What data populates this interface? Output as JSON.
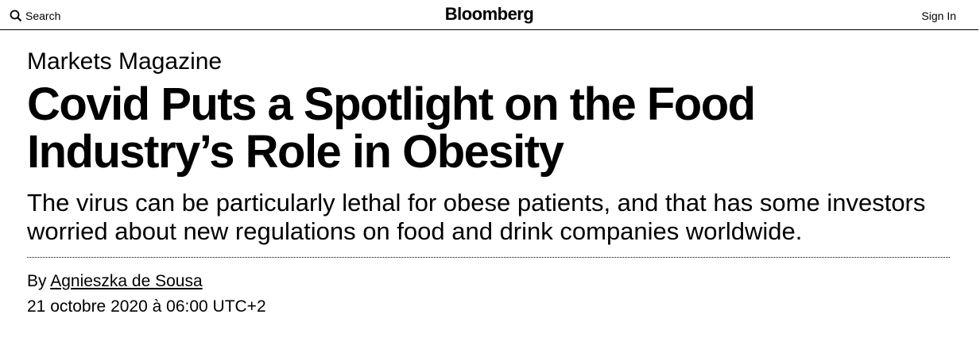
{
  "header": {
    "search": "Search",
    "logo": "Bloomberg",
    "sign_in": "Sign In"
  },
  "article": {
    "section": "Markets Magazine",
    "headline": "Covid Puts a Spotlight on the Food Industry’s Role in Obesity",
    "dek": "The virus can be particularly lethal for obese patients, and that has some investors worried about new regulations on food and drink companies worldwide.",
    "byline_prefix": "By",
    "author": "Agnieszka de Sousa",
    "date": "21 octobre 2020 à 06:00 UTC+2"
  }
}
